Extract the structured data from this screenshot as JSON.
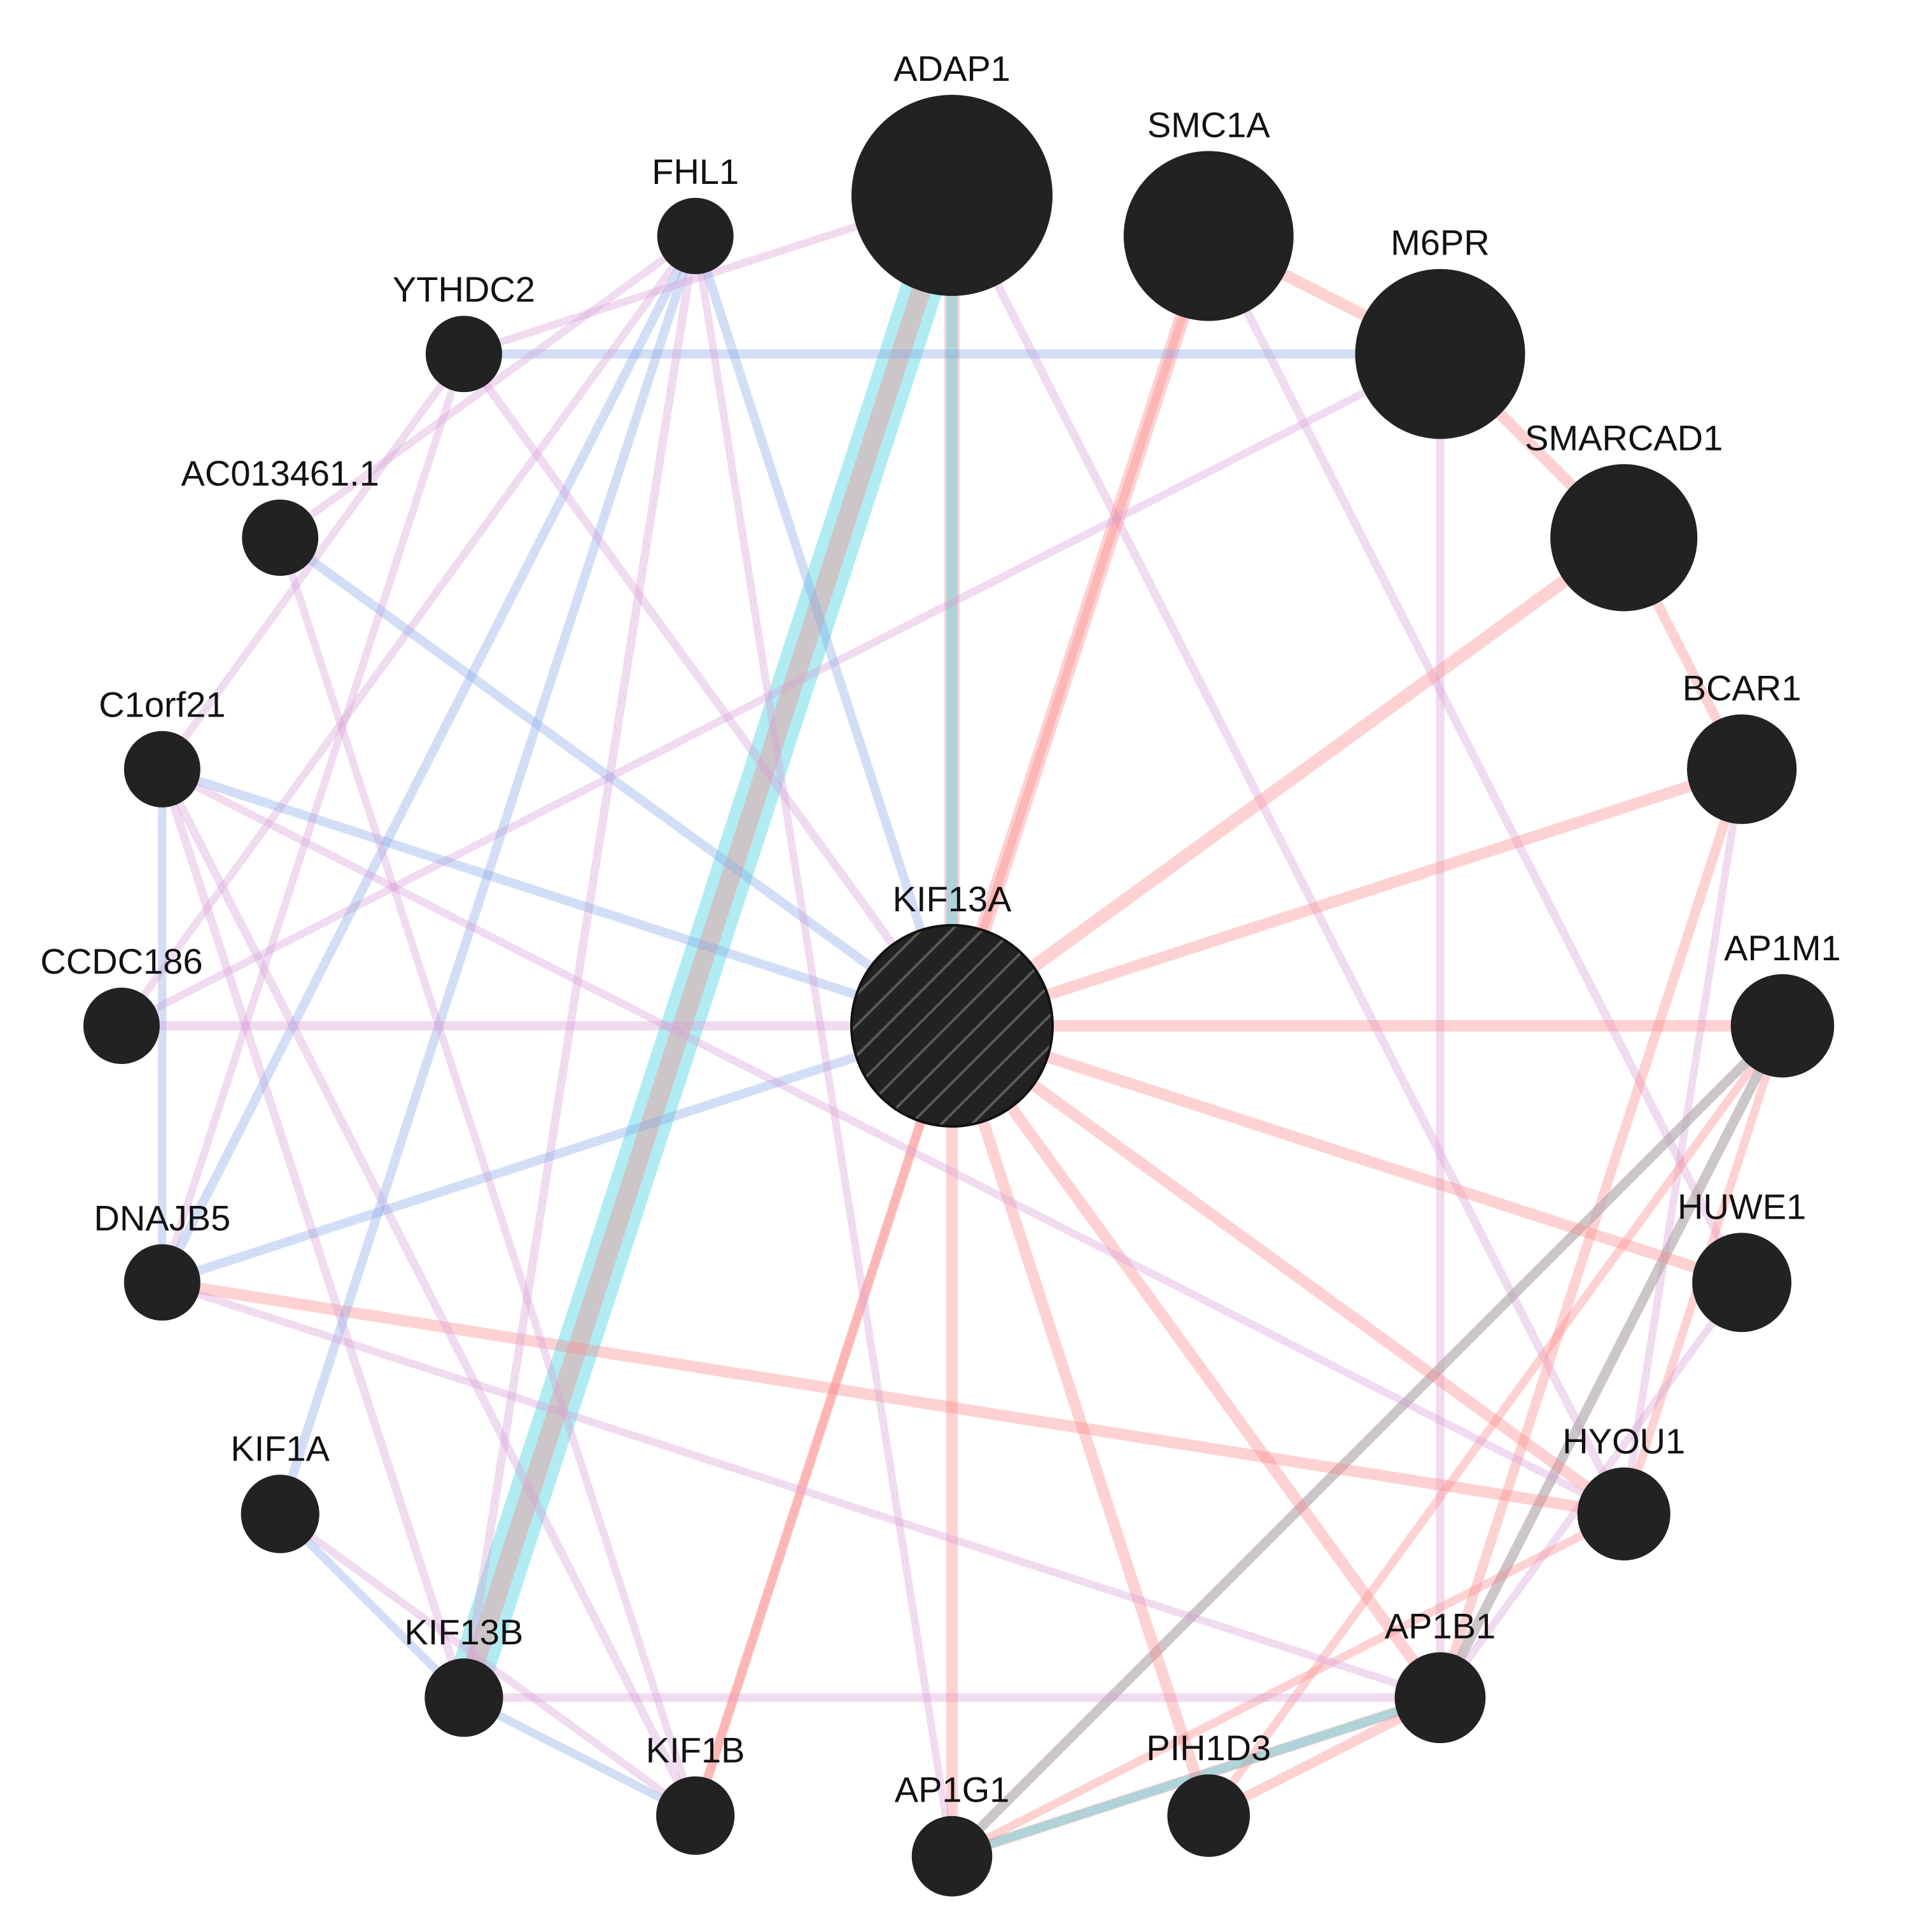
{
  "network": {
    "center": "KIF13A",
    "nodes": [
      {
        "id": "KIF13A",
        "label": "KIF13A",
        "weight": 1.0,
        "query": true
      },
      {
        "id": "ADAP1",
        "label": "ADAP1",
        "weight": 1.0
      },
      {
        "id": "SMC1A",
        "label": "SMC1A",
        "weight": 0.85
      },
      {
        "id": "M6PR",
        "label": "M6PR",
        "weight": 0.85
      },
      {
        "id": "SMARCAD1",
        "label": "SMARCAD1",
        "weight": 0.74
      },
      {
        "id": "BCAR1",
        "label": "BCAR1",
        "weight": 0.56
      },
      {
        "id": "AP1M1",
        "label": "AP1M1",
        "weight": 0.53
      },
      {
        "id": "HUWE1",
        "label": "HUWE1",
        "weight": 0.51
      },
      {
        "id": "HYOU1",
        "label": "HYOU1",
        "weight": 0.48
      },
      {
        "id": "AP1B1",
        "label": "AP1B1",
        "weight": 0.47
      },
      {
        "id": "PIH1D3",
        "label": "PIH1D3",
        "weight": 0.43
      },
      {
        "id": "AP1G1",
        "label": "AP1G1",
        "weight": 0.42
      },
      {
        "id": "KIF1B",
        "label": "KIF1B",
        "weight": 0.41
      },
      {
        "id": "KIF13B",
        "label": "KIF13B",
        "weight": 0.41
      },
      {
        "id": "KIF1A",
        "label": "KIF1A",
        "weight": 0.41
      },
      {
        "id": "DNAJB5",
        "label": "DNAJB5",
        "weight": 0.4
      },
      {
        "id": "CCDC186",
        "label": "CCDC186",
        "weight": 0.4
      },
      {
        "id": "C1orf21",
        "label": "C1orf21",
        "weight": 0.4
      },
      {
        "id": "AC013461.1",
        "label": "AC013461.1",
        "weight": 0.4
      },
      {
        "id": "YTHDC2",
        "label": "YTHDC2",
        "weight": 0.4
      },
      {
        "id": "FHL1",
        "label": "FHL1",
        "weight": 0.4
      }
    ],
    "edge_colors": {
      "pink": "#fd8a8a",
      "cyan": "#4fd4e0",
      "blue": "#8aa8e8",
      "purple": "#d8a0d8"
    },
    "node_color": "#222222",
    "edges": [
      {
        "s": "ADAP1",
        "t": "KIF13B",
        "type": "cyan",
        "w": 5
      },
      {
        "s": "ADAP1",
        "t": "KIF13B",
        "type": "pink",
        "w": 2
      },
      {
        "s": "ADAP1",
        "t": "KIF13A",
        "type": "pink",
        "w": 1.5
      },
      {
        "s": "ADAP1",
        "t": "KIF13A",
        "type": "cyan",
        "w": 1
      },
      {
        "s": "ADAP1",
        "t": "HYOU1",
        "type": "purple",
        "w": 0.6
      },
      {
        "s": "SMC1A",
        "t": "KIF13A",
        "type": "pink",
        "w": 1.5
      },
      {
        "s": "SMC1A",
        "t": "M6PR",
        "type": "pink",
        "w": 1
      },
      {
        "s": "SMC1A",
        "t": "HUWE1",
        "type": "purple",
        "w": 0.6
      },
      {
        "s": "SMC1A",
        "t": "KIF1B",
        "type": "pink",
        "w": 0.6
      },
      {
        "s": "M6PR",
        "t": "SMARCAD1",
        "type": "pink",
        "w": 1
      },
      {
        "s": "M6PR",
        "t": "YTHDC2",
        "type": "blue",
        "w": 0.7
      },
      {
        "s": "M6PR",
        "t": "AP1B1",
        "type": "purple",
        "w": 0.6
      },
      {
        "s": "M6PR",
        "t": "CCDC186",
        "type": "purple",
        "w": 0.5
      },
      {
        "s": "SMARCAD1",
        "t": "KIF13A",
        "type": "pink",
        "w": 1.2
      },
      {
        "s": "SMARCAD1",
        "t": "BCAR1",
        "type": "pink",
        "w": 0.8
      },
      {
        "s": "BCAR1",
        "t": "KIF13A",
        "type": "pink",
        "w": 1
      },
      {
        "s": "BCAR1",
        "t": "AP1B1",
        "type": "pink",
        "w": 0.8
      },
      {
        "s": "BCAR1",
        "t": "HYOU1",
        "type": "purple",
        "w": 0.5
      },
      {
        "s": "AP1M1",
        "t": "KIF13A",
        "type": "pink",
        "w": 1
      },
      {
        "s": "AP1M1",
        "t": "AP1G1",
        "type": "cyan",
        "w": 0.8
      },
      {
        "s": "AP1M1",
        "t": "AP1G1",
        "type": "pink",
        "w": 0.8
      },
      {
        "s": "AP1M1",
        "t": "AP1B1",
        "type": "cyan",
        "w": 0.8
      },
      {
        "s": "AP1M1",
        "t": "AP1B1",
        "type": "pink",
        "w": 0.8
      },
      {
        "s": "AP1M1",
        "t": "PIH1D3",
        "type": "pink",
        "w": 0.6
      },
      {
        "s": "AP1M1",
        "t": "HYOU1",
        "type": "pink",
        "w": 0.6
      },
      {
        "s": "HUWE1",
        "t": "KIF13A",
        "type": "pink",
        "w": 1
      },
      {
        "s": "HUWE1",
        "t": "AP1B1",
        "type": "purple",
        "w": 0.5
      },
      {
        "s": "HYOU1",
        "t": "KIF13A",
        "type": "pink",
        "w": 1
      },
      {
        "s": "HYOU1",
        "t": "DNAJB5",
        "type": "pink",
        "w": 1
      },
      {
        "s": "HYOU1",
        "t": "AP1G1",
        "type": "pink",
        "w": 0.6
      },
      {
        "s": "AP1B1",
        "t": "KIF13A",
        "type": "pink",
        "w": 1
      },
      {
        "s": "AP1B1",
        "t": "AP1G1",
        "type": "pink",
        "w": 0.9
      },
      {
        "s": "AP1B1",
        "t": "AP1G1",
        "type": "cyan",
        "w": 0.7
      },
      {
        "s": "AP1B1",
        "t": "KIF13B",
        "type": "purple",
        "w": 0.6
      },
      {
        "s": "PIH1D3",
        "t": "KIF13A",
        "type": "pink",
        "w": 1
      },
      {
        "s": "PIH1D3",
        "t": "AP1B1",
        "type": "pink",
        "w": 0.8
      },
      {
        "s": "AP1G1",
        "t": "KIF13A",
        "type": "pink",
        "w": 1
      },
      {
        "s": "KIF1B",
        "t": "KIF13A",
        "type": "pink",
        "w": 0.8
      },
      {
        "s": "KIF1B",
        "t": "KIF13B",
        "type": "blue",
        "w": 0.6
      },
      {
        "s": "KIF1B",
        "t": "C1orf21",
        "type": "purple",
        "w": 0.6
      },
      {
        "s": "KIF13B",
        "t": "KIF1A",
        "type": "blue",
        "w": 0.6
      },
      {
        "s": "KIF13B",
        "t": "C1orf21",
        "type": "purple",
        "w": 0.6
      },
      {
        "s": "KIF13B",
        "t": "FHL1",
        "type": "purple",
        "w": 0.6
      },
      {
        "s": "KIF1A",
        "t": "FHL1",
        "type": "blue",
        "w": 0.7
      },
      {
        "s": "KIF1A",
        "t": "KIF1B",
        "type": "purple",
        "w": 0.5
      },
      {
        "s": "DNAJB5",
        "t": "KIF13A",
        "type": "blue",
        "w": 0.7
      },
      {
        "s": "DNAJB5",
        "t": "FHL1",
        "type": "blue",
        "w": 0.7
      },
      {
        "s": "DNAJB5",
        "t": "C1orf21",
        "type": "blue",
        "w": 0.6
      },
      {
        "s": "DNAJB5",
        "t": "AP1B1",
        "type": "purple",
        "w": 0.5
      },
      {
        "s": "DNAJB5",
        "t": "YTHDC2",
        "type": "purple",
        "w": 0.5
      },
      {
        "s": "CCDC186",
        "t": "KIF13A",
        "type": "purple",
        "w": 0.7
      },
      {
        "s": "CCDC186",
        "t": "FHL1",
        "type": "purple",
        "w": 0.5
      },
      {
        "s": "C1orf21",
        "t": "KIF13A",
        "type": "blue",
        "w": 0.7
      },
      {
        "s": "C1orf21",
        "t": "YTHDC2",
        "type": "purple",
        "w": 0.5
      },
      {
        "s": "C1orf21",
        "t": "HYOU1",
        "type": "purple",
        "w": 0.5
      },
      {
        "s": "AC013461.1",
        "t": "KIF13A",
        "type": "blue",
        "w": 0.7
      },
      {
        "s": "AC013461.1",
        "t": "FHL1",
        "type": "purple",
        "w": 0.5
      },
      {
        "s": "AC013461.1",
        "t": "KIF1B",
        "type": "purple",
        "w": 0.5
      },
      {
        "s": "YTHDC2",
        "t": "KIF13A",
        "type": "purple",
        "w": 0.6
      },
      {
        "s": "YTHDC2",
        "t": "ADAP1",
        "type": "purple",
        "w": 0.5
      },
      {
        "s": "FHL1",
        "t": "KIF13A",
        "type": "blue",
        "w": 0.7
      },
      {
        "s": "FHL1",
        "t": "AP1G1",
        "type": "purple",
        "w": 0.5
      }
    ]
  }
}
